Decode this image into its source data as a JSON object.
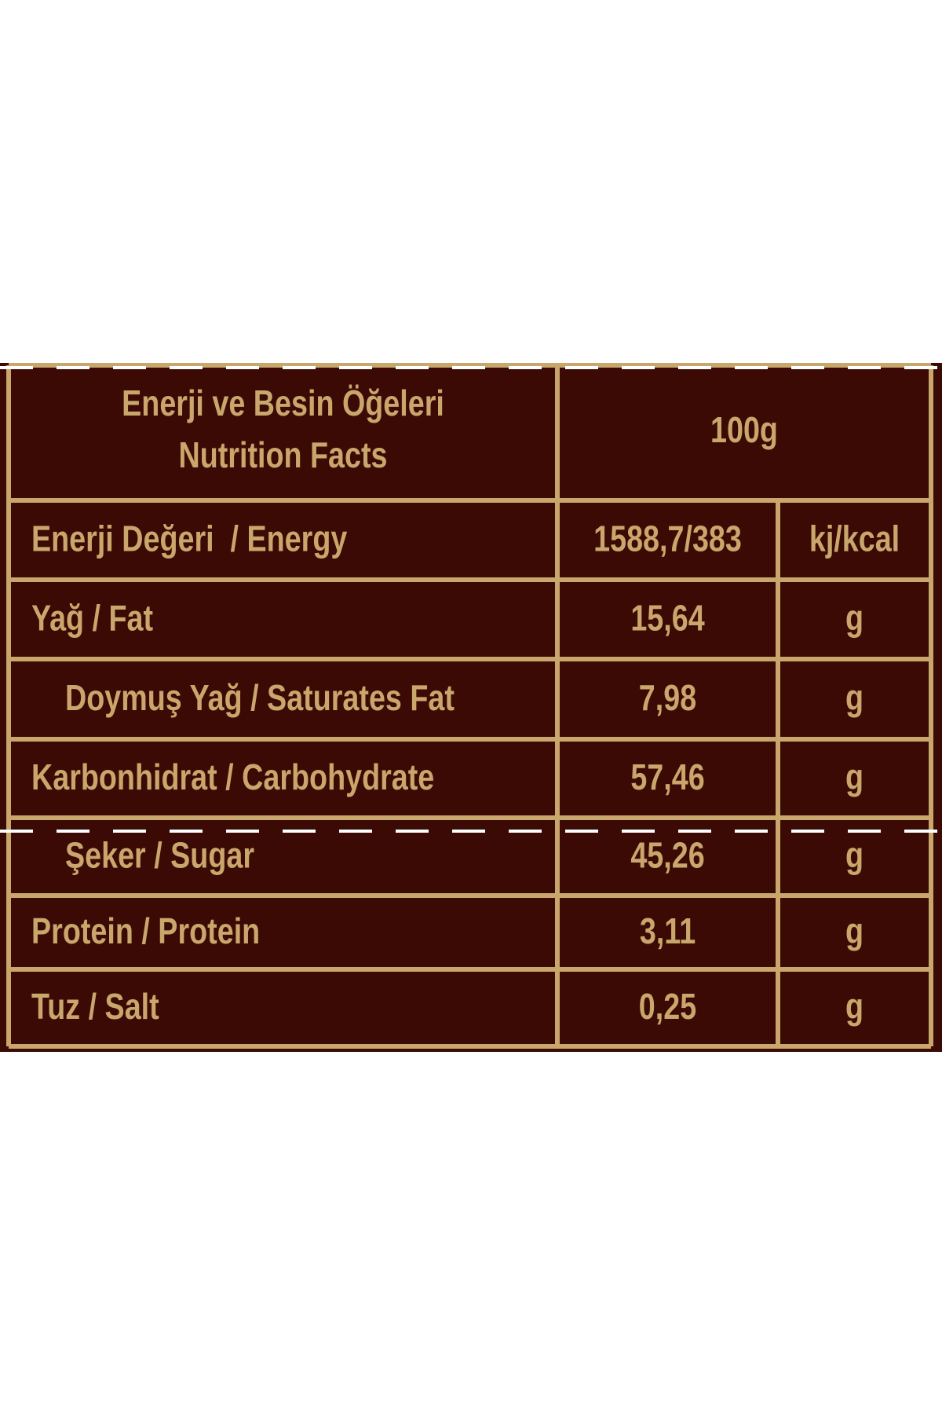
{
  "header": {
    "title": [
      "Enerji ve Besin Öğeleri",
      "Nutrition Facts"
    ],
    "amount": "100g"
  },
  "table": {
    "rows": [
      [
        "Enerji Değeri  / Energy",
        "1588,7/383",
        "kj/kcal"
      ],
      [
        "Yağ / Fat",
        "15,64",
        "g"
      ],
      [
        "Doymuş Yağ / Saturates Fat",
        "7,98",
        "g"
      ],
      [
        "Karbonhidrat / Carbohydrate",
        "57,46",
        "g"
      ],
      [
        "Şeker / Sugar",
        "45,26",
        "g"
      ],
      [
        "Protein / Protein",
        "3,11",
        "g"
      ],
      [
        "Tuz / Salt",
        "0,25",
        "g"
      ]
    ]
  }
}
